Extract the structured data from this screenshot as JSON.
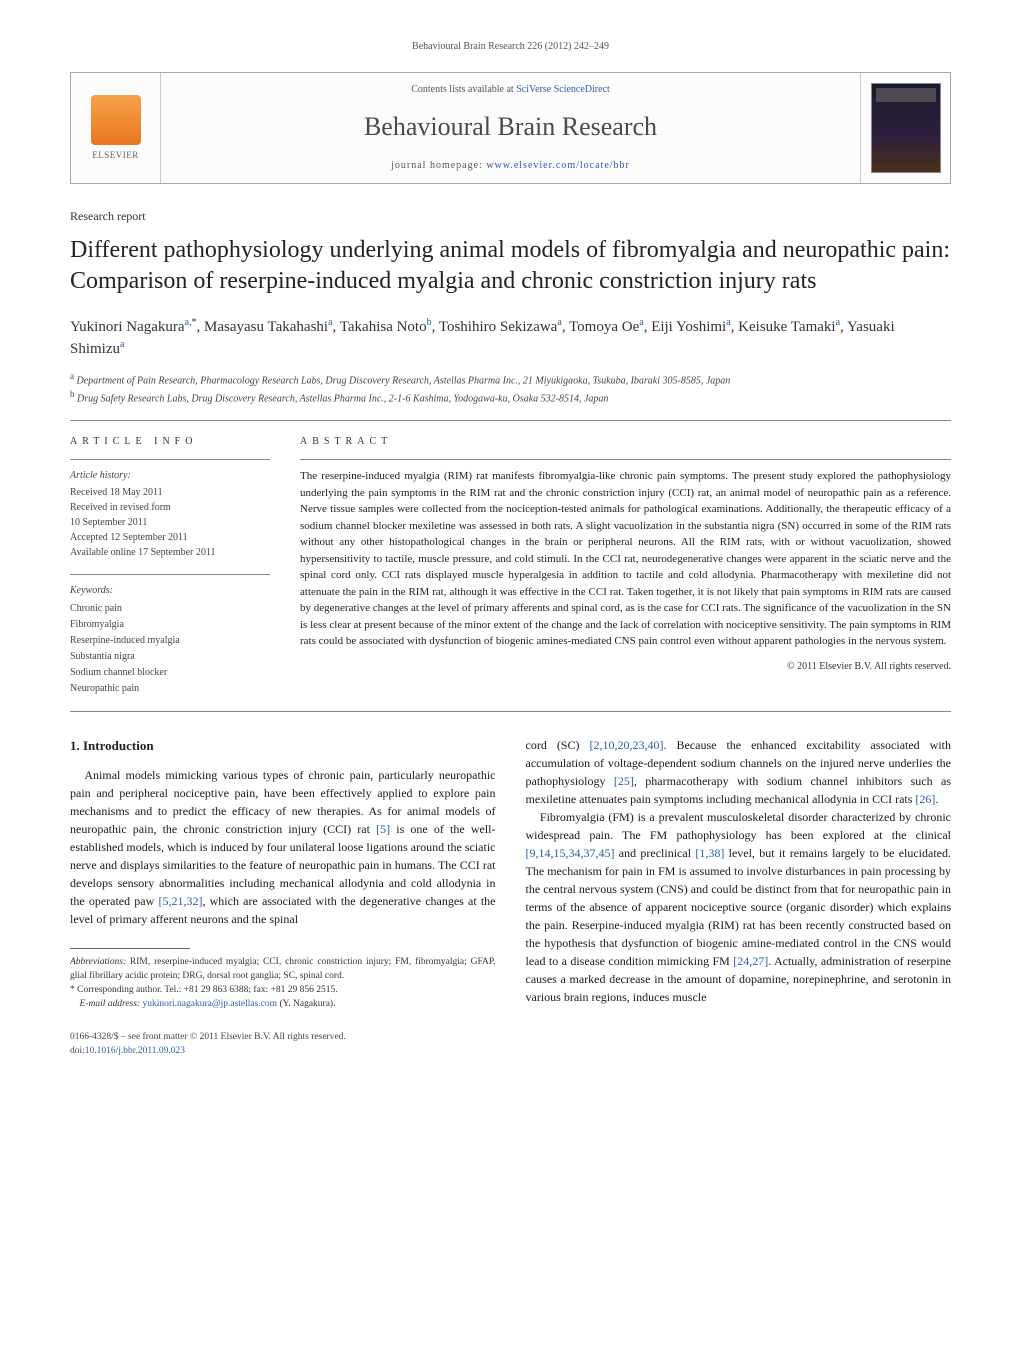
{
  "running_head": "Behavioural Brain Research 226 (2012) 242–249",
  "header": {
    "contents_prefix": "Contents lists available at ",
    "contents_link": "SciVerse ScienceDirect",
    "journal_title": "Behavioural Brain Research",
    "homepage_prefix": "journal homepage: ",
    "homepage_link": "www.elsevier.com/locate/bbr",
    "publisher_name": "ELSEVIER"
  },
  "section_label": "Research report",
  "title": "Different pathophysiology underlying animal models of fibromyalgia and neuropathic pain: Comparison of reserpine-induced myalgia and chronic constriction injury rats",
  "authors_html": "Yukinori Nagakura<sup>a,</sup><sup class=\"star\">*</sup>, Masayasu Takahashi<sup>a</sup>, Takahisa Noto<sup>b</sup>, Toshihiro Sekizawa<sup>a</sup>, Tomoya Oe<sup>a</sup>, Eiji Yoshimi<sup>a</sup>, Keisuke Tamaki<sup>a</sup>, Yasuaki Shimizu<sup>a</sup>",
  "affiliations": [
    {
      "key": "a",
      "text": "Department of Pain Research, Pharmacology Research Labs, Drug Discovery Research, Astellas Pharma Inc., 21 Miyukigaoka, Tsukuba, Ibaraki 305-8585, Japan"
    },
    {
      "key": "b",
      "text": "Drug Safety Research Labs, Drug Discovery Research, Astellas Pharma Inc., 2-1-6 Kashima, Yodogawa-ku, Osaka 532-8514, Japan"
    }
  ],
  "article_info": {
    "heading": "article info",
    "history_label": "Article history:",
    "history": [
      "Received 18 May 2011",
      "Received in revised form",
      "10 September 2011",
      "Accepted 12 September 2011",
      "Available online 17 September 2011"
    ],
    "keywords_label": "Keywords:",
    "keywords": [
      "Chronic pain",
      "Fibromyalgia",
      "Reserpine-induced myalgia",
      "Substantia nigra",
      "Sodium channel blocker",
      "Neuropathic pain"
    ]
  },
  "abstract": {
    "heading": "abstract",
    "text": "The reserpine-induced myalgia (RIM) rat manifests fibromyalgia-like chronic pain symptoms. The present study explored the pathophysiology underlying the pain symptoms in the RIM rat and the chronic constriction injury (CCI) rat, an animal model of neuropathic pain as a reference. Nerve tissue samples were collected from the nociception-tested animals for pathological examinations. Additionally, the therapeutic efficacy of a sodium channel blocker mexiletine was assessed in both rats. A slight vacuolization in the substantia nigra (SN) occurred in some of the RIM rats without any other histopathological changes in the brain or peripheral neurons. All the RIM rats, with or without vacuolization, showed hypersensitivity to tactile, muscle pressure, and cold stimuli. In the CCI rat, neurodegenerative changes were apparent in the sciatic nerve and the spinal cord only. CCI rats displayed muscle hyperalgesia in addition to tactile and cold allodynia. Pharmacotherapy with mexiletine did not attenuate the pain in the RIM rat, although it was effective in the CCI rat. Taken together, it is not likely that pain symptoms in RIM rats are caused by degenerative changes at the level of primary afferents and spinal cord, as is the case for CCI rats. The significance of the vacuolization in the SN is less clear at present because of the minor extent of the change and the lack of correlation with nociceptive sensitivity. The pain symptoms in RIM rats could be associated with dysfunction of biogenic amines-mediated CNS pain control even without apparent pathologies in the nervous system.",
    "copyright": "© 2011 Elsevier B.V. All rights reserved."
  },
  "body": {
    "intro_heading": "1.  Introduction",
    "p1_part1": "Animal models mimicking various types of chronic pain, particularly neuropathic pain and peripheral nociceptive pain, have been effectively applied to explore pain mechanisms and to predict the efficacy of new therapies. As for animal models of neuropathic pain, the chronic constriction injury (CCI) rat ",
    "cite5": "[5]",
    "p1_part2": " is one of the well-established models, which is induced by four unilateral loose ligations around the sciatic nerve and displays similarities to the feature of neuropathic pain in humans. The CCI rat develops sensory abnormalities including mechanical allodynia and cold allodynia in the operated paw ",
    "cite5_21_32": "[5,21,32]",
    "p1_part3": ", which are associated with the degenerative changes at the level of primary afferent neurons and the spinal",
    "p1_cont_part1": "cord (SC) ",
    "cite2_10_20_23_40": "[2,10,20,23,40]",
    "p1_cont_part2": ". Because the enhanced excitability associated with accumulation of voltage-dependent sodium channels on the injured nerve underlies the pathophysiology ",
    "cite25": "[25]",
    "p1_cont_part3": ", pharmacotherapy with sodium channel inhibitors such as mexiletine attenuates pain symptoms including mechanical allodynia in CCI rats ",
    "cite26": "[26]",
    "p1_cont_part4": ".",
    "p2_part1": "Fibromyalgia (FM) is a prevalent musculoskeletal disorder characterized by chronic widespread pain. The FM pathophysiology has been explored at the clinical ",
    "cite9_14_15_34_37_45": "[9,14,15,34,37,45]",
    "p2_part2": " and preclinical ",
    "cite1_38": "[1,38]",
    "p2_part3": " level, but it remains largely to be elucidated. The mechanism for pain in FM is assumed to involve disturbances in pain processing by the central nervous system (CNS) and could be distinct from that for neuropathic pain in terms of the absence of apparent nociceptive source (organic disorder) which explains the pain. Reserpine-induced myalgia (RIM) rat has been recently constructed based on the hypothesis that dysfunction of biogenic amine-mediated control in the CNS would lead to a disease condition mimicking FM ",
    "cite24_27": "[24,27]",
    "p2_part4": ". Actually, administration of reserpine causes a marked decrease in the amount of dopamine, norepinephrine, and serotonin in various brain regions, induces muscle"
  },
  "footnotes": {
    "abbrev_label": "Abbreviations:",
    "abbrev_text": " RIM, reserpine-induced myalgia; CCI, chronic constriction injury; FM, fibromyalgia; GFAP, glial fibrillary acidic protein; DRG, dorsal root ganglia; SC, spinal cord.",
    "corr_label": "* Corresponding author. ",
    "corr_text": "Tel.: +81 29 863 6388; fax: +81 29 856 2515.",
    "email_label": "E-mail address: ",
    "email": "yukinori.nagakura@jp.astellas.com",
    "email_suffix": " (Y. Nagakura)."
  },
  "bottom": {
    "issn_line": "0166-4328/$ – see front matter © 2011 Elsevier B.V. All rights reserved.",
    "doi_prefix": "doi:",
    "doi": "10.1016/j.bbr.2011.09.023"
  },
  "colors": {
    "link": "#2a5db0",
    "rule": "#888888",
    "text": "#1a1a1a"
  }
}
